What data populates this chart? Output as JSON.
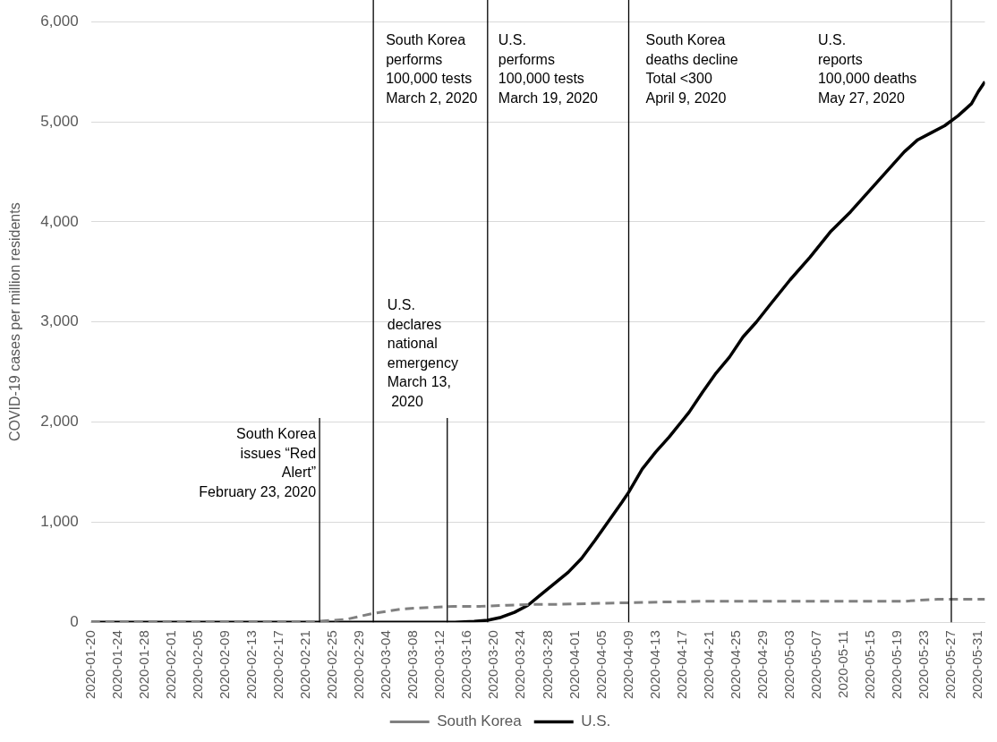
{
  "chart_data": {
    "type": "line",
    "ylabel": "COVID-19 cases per million residents",
    "xlim": [
      "2020-01-20",
      "2020-06-01"
    ],
    "xticks": [
      "2020-01-20",
      "2020-01-24",
      "2020-01-28",
      "2020-02-01",
      "2020-02-05",
      "2020-02-09",
      "2020-02-13",
      "2020-02-17",
      "2020-02-21",
      "2020-02-25",
      "2020-02-29",
      "2020-03-04",
      "2020-03-08",
      "2020-03-12",
      "2020-03-16",
      "2020-03-20",
      "2020-03-24",
      "2020-03-28",
      "2020-04-01",
      "2020-04-05",
      "2020-04-09",
      "2020-04-13",
      "2020-04-17",
      "2020-04-21",
      "2020-04-25",
      "2020-04-29",
      "2020-05-03",
      "2020-05-07",
      "2020-05-11",
      "2020-05-15",
      "2020-05-19",
      "2020-05-23",
      "2020-05-27",
      "2020-05-31"
    ],
    "ylim": [
      0,
      6000
    ],
    "yticks": [
      0,
      {
        "value": 1000,
        "label": "1,000"
      },
      {
        "value": 2000,
        "label": "2,000"
      },
      {
        "value": 3000,
        "label": "3,000"
      },
      {
        "value": 4000,
        "label": "4,000"
      },
      {
        "value": 5000,
        "label": "5,000"
      },
      {
        "value": 6000,
        "label": "6,000"
      }
    ],
    "grid": "y",
    "legend": "bottom",
    "marker": "none",
    "series": [
      {
        "name": "South Korea",
        "color": "#808080",
        "line_style": "dashed",
        "x": [
          "2020-01-20",
          "2020-02-20",
          "2020-02-23",
          "2020-02-25",
          "2020-02-27",
          "2020-02-29",
          "2020-03-02",
          "2020-03-04",
          "2020-03-06",
          "2020-03-08",
          "2020-03-11",
          "2020-03-14",
          "2020-03-18",
          "2020-03-22",
          "2020-03-26",
          "2020-03-30",
          "2020-04-05",
          "2020-04-12",
          "2020-04-20",
          "2020-05-01",
          "2020-05-10",
          "2020-05-20",
          "2020-05-22",
          "2020-05-25",
          "2020-06-01"
        ],
        "values": [
          0,
          0,
          10,
          20,
          30,
          60,
          90,
          110,
          130,
          140,
          150,
          160,
          160,
          170,
          180,
          180,
          190,
          200,
          210,
          210,
          210,
          210,
          220,
          230,
          230
        ]
      },
      {
        "name": "U.S.",
        "color": "#000000",
        "line_style": "solid",
        "x": [
          "2020-01-20",
          "2020-03-10",
          "2020-03-14",
          "2020-03-17",
          "2020-03-19",
          "2020-03-21",
          "2020-03-23",
          "2020-03-25",
          "2020-03-27",
          "2020-03-29",
          "2020-03-31",
          "2020-04-02",
          "2020-04-04",
          "2020-04-06",
          "2020-04-08",
          "2020-04-09",
          "2020-04-11",
          "2020-04-13",
          "2020-04-15",
          "2020-04-18",
          "2020-04-20",
          "2020-04-22",
          "2020-04-24",
          "2020-04-26",
          "2020-04-28",
          "2020-04-30",
          "2020-05-03",
          "2020-05-06",
          "2020-05-09",
          "2020-05-12",
          "2020-05-14",
          "2020-05-16",
          "2020-05-18",
          "2020-05-20",
          "2020-05-22",
          "2020-05-24",
          "2020-05-26",
          "2020-05-28",
          "2020-05-30",
          "2020-05-31",
          "2020-06-01"
        ],
        "values": [
          0,
          0,
          0,
          10,
          20,
          50,
          100,
          170,
          280,
          390,
          500,
          640,
          820,
          1010,
          1200,
          1300,
          1530,
          1700,
          1850,
          2100,
          2300,
          2490,
          2650,
          2850,
          3000,
          3170,
          3420,
          3650,
          3900,
          4100,
          4250,
          4400,
          4550,
          4700,
          4820,
          4890,
          4960,
          5060,
          5180,
          5300,
          5400
        ]
      }
    ],
    "ref_lines": [
      {
        "axis": "x",
        "value": "2020-02-23",
        "label": "South Korea\nissues “Red\nAlert”\nFebruary 23, 2020",
        "color": "#000000"
      },
      {
        "axis": "x",
        "value": "2020-03-02",
        "label": "South Korea\nperforms\n100,000 tests\nMarch 2, 2020",
        "color": "#000000"
      },
      {
        "axis": "x",
        "value": "2020-03-13",
        "label": "U.S.\ndeclares\nnational\nemergency\nMarch 13,\n 2020",
        "color": "#000000"
      },
      {
        "axis": "x",
        "value": "2020-03-19",
        "label": "U.S.\nperforms\n100,000 tests\nMarch 19, 2020",
        "color": "#000000"
      },
      {
        "axis": "x",
        "value": "2020-04-09",
        "label": "South Korea\ndeaths decline\nTotal <300\nApril 9, 2020",
        "color": "#000000"
      },
      {
        "axis": "x",
        "value": "2020-05-27",
        "label": "U.S.\nreports\n100,000 deaths\nMay 27, 2020",
        "color": "#000000"
      }
    ]
  }
}
